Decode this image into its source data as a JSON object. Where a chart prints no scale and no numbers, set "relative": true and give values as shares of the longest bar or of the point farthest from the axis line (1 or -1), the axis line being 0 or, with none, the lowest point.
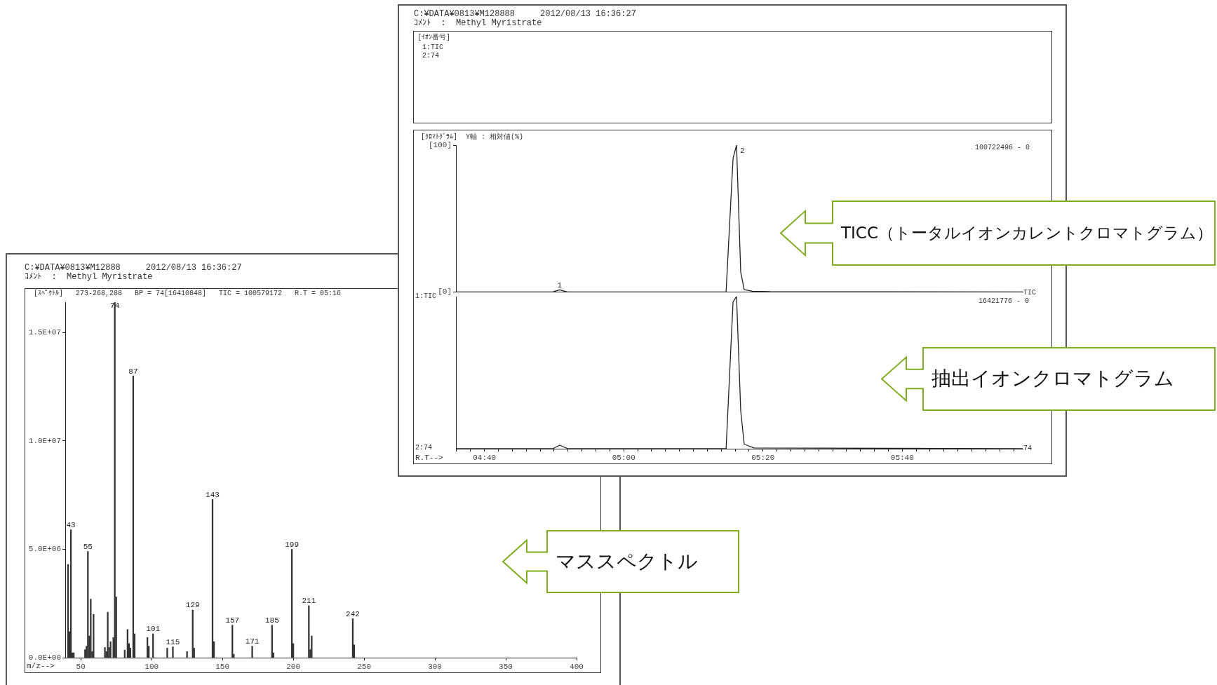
{
  "chart_data": [
    {
      "type": "line",
      "title": "C:¥DATA¥0813¥M128888     2012/08/13 16:36:27",
      "subtitle": "ｺﾒﾝﾄ  :  Methyl Myristrate",
      "ylabel": "[ｸﾛﾏﾄｸﾞﾗﾑ]  Y軸 : 相対値(%)",
      "x": [
        275.9,
        289.8,
        290.8,
        291.9,
        314.7,
        315.7,
        316.2,
        316.8,
        317.3,
        318.5,
        321,
        357.3
      ],
      "series": [
        {
          "color": "#222222",
          "values": [
            0,
            0,
            1.4,
            0,
            0,
            91,
            100,
            13.5,
            1.6,
            0.5,
            0.2,
            0
          ]
        }
      ],
      "xlim": [
        275.9,
        357.3
      ],
      "ylim": [
        0,
        100
      ],
      "yticks": [
        {
          "value": 0,
          "label": "[0]"
        },
        {
          "value": 100,
          "label": "[100]"
        }
      ],
      "tick_labels": "y",
      "annotations": [
        "[ｲｵﾝ番号]",
        "1:TIC",
        "2:74",
        "1:TIC",
        "100722496 - 0",
        "TIC",
        {
          "text": "1",
          "x": 290.8,
          "y": 1.4
        },
        {
          "text": "2",
          "x": 316.2,
          "y": 100
        },
        "TICC（トータルイオンカレントクロマトグラム）"
      ]
    },
    {
      "type": "line",
      "relative": true,
      "xlabel": "R.T-->",
      "x": [
        275.9,
        289.8,
        290.8,
        291.9,
        314.7,
        315.7,
        316.2,
        316.8,
        317.3,
        318.7,
        357.3
      ],
      "series": [
        {
          "color": "#222222",
          "values": [
            0,
            0,
            0.023,
            0.002,
            0,
            0.966,
            1,
            0.25,
            0.03,
            0.005,
            0
          ]
        }
      ],
      "xlim": [
        275.9,
        357.3
      ],
      "tick_labels": "x",
      "xticks": [
        {
          "value": 276,
          "label": null
        },
        {
          "value": 278,
          "label": null
        },
        {
          "value": 280,
          "label": "04:40"
        },
        {
          "value": 282,
          "label": null
        },
        {
          "value": 284,
          "label": null
        },
        {
          "value": 286,
          "label": null
        },
        {
          "value": 288,
          "label": null
        },
        {
          "value": 290,
          "label": null
        },
        {
          "value": 292,
          "label": null
        },
        {
          "value": 294,
          "label": null
        },
        {
          "value": 296,
          "label": null
        },
        {
          "value": 298,
          "label": null
        },
        {
          "value": 300,
          "label": "05:00"
        },
        {
          "value": 302,
          "label": null
        },
        {
          "value": 304,
          "label": null
        },
        {
          "value": 306,
          "label": null
        },
        {
          "value": 308,
          "label": null
        },
        {
          "value": 310,
          "label": null
        },
        {
          "value": 312,
          "label": null
        },
        {
          "value": 314,
          "label": null
        },
        {
          "value": 316,
          "label": null
        },
        {
          "value": 318,
          "label": null
        },
        {
          "value": 320,
          "label": "05:20"
        },
        {
          "value": 322,
          "label": null
        },
        {
          "value": 324,
          "label": null
        },
        {
          "value": 326,
          "label": null
        },
        {
          "value": 328,
          "label": null
        },
        {
          "value": 330,
          "label": null
        },
        {
          "value": 332,
          "label": null
        },
        {
          "value": 334,
          "label": null
        },
        {
          "value": 336,
          "label": null
        },
        {
          "value": 338,
          "label": null
        },
        {
          "value": 340,
          "label": "05:40"
        },
        {
          "value": 342,
          "label": null
        },
        {
          "value": 344,
          "label": null
        },
        {
          "value": 346,
          "label": null
        },
        {
          "value": 348,
          "label": null
        },
        {
          "value": 350,
          "label": null
        },
        {
          "value": 352,
          "label": null
        },
        {
          "value": 354,
          "label": null
        },
        {
          "value": 356,
          "label": null
        }
      ],
      "annotations": [
        "2:74",
        "16421776 - 0",
        "74",
        "抽出イオンクロマトグラム"
      ]
    },
    {
      "type": "bar",
      "title": "C:¥DATA¥0813¥M12888     2012/08/13 16:36:27",
      "subtitle": "ｺﾒﾝﾄ  :  Methyl Myristrate",
      "xlabel": "m/z-->",
      "color": "#333333",
      "x": [
        41,
        42,
        43,
        44,
        45,
        53,
        54,
        55,
        56,
        57,
        58,
        59,
        67,
        68,
        69,
        70,
        71,
        73,
        74,
        75,
        81,
        83,
        84,
        85,
        87,
        88,
        97,
        98,
        101,
        111,
        115,
        125,
        129,
        130,
        143,
        144,
        157,
        158,
        171,
        185,
        186,
        199,
        200,
        211,
        212,
        213,
        242,
        243
      ],
      "values": [
        4300000,
        1200000,
        5900000,
        220000,
        220000,
        370000,
        530000,
        4900000,
        1000000,
        2700000,
        280000,
        2000000,
        470000,
        280000,
        2100000,
        470000,
        740000,
        930000,
        16400000,
        2800000,
        350000,
        1300000,
        650000,
        440000,
        13000000,
        1100000,
        930000,
        530000,
        1100000,
        440000,
        500000,
        280000,
        2200000,
        440000,
        7300000,
        740000,
        1500000,
        160000,
        530000,
        1500000,
        220000,
        5000000,
        650000,
        2400000,
        370000,
        1000000,
        1800000,
        590000
      ],
      "xlim": [
        39,
        400
      ],
      "xticks": [
        50,
        100,
        150,
        200,
        250,
        300,
        350,
        400
      ],
      "ylim": [
        0,
        16400000
      ],
      "yticks": [
        {
          "value": 0,
          "label": "0.0E+00"
        },
        {
          "value": 5000000,
          "label": "5.0E+06"
        },
        {
          "value": 10000000,
          "label": "1.0E+07"
        },
        {
          "value": 15000000,
          "label": "1.5E+07"
        }
      ],
      "annotations": [
        "[ｽﾍﾟｸﾄﾙ]   273-268,288   BP = 74[16410848]   TIC = 100579172   R.T = 05:16",
        "マススペクトル",
        {
          "text": "43",
          "x": 43,
          "y": 5900000
        },
        {
          "text": "55",
          "x": 55,
          "y": 4900000
        },
        {
          "text": "74",
          "x": 74,
          "y": 16400000
        },
        {
          "text": "87",
          "x": 87,
          "y": 13000000
        },
        {
          "text": "101",
          "x": 101,
          "y": 1100000
        },
        {
          "text": "115",
          "x": 115,
          "y": 500000
        },
        {
          "text": "129",
          "x": 129,
          "y": 2200000
        },
        {
          "text": "143",
          "x": 143,
          "y": 7300000
        },
        {
          "text": "157",
          "x": 157,
          "y": 1500000
        },
        {
          "text": "171",
          "x": 171,
          "y": 530000
        },
        {
          "text": "185",
          "x": 185,
          "y": 1500000
        },
        {
          "text": "199",
          "x": 199,
          "y": 5000000
        },
        {
          "text": "211",
          "x": 211,
          "y": 2400000
        },
        {
          "text": "242",
          "x": 242,
          "y": 1800000
        }
      ]
    }
  ]
}
